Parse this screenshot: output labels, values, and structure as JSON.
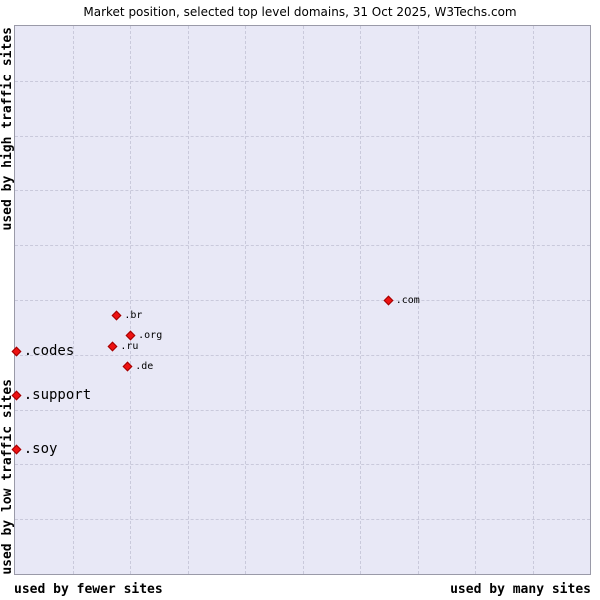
{
  "title": "Market position, selected top level domains, 31 Oct 2025, W3Techs.com",
  "axis_labels": {
    "y_top": "used by high traffic sites",
    "y_bottom": "used by low traffic sites",
    "x_left": "used by fewer sites",
    "x_right": "used by many sites"
  },
  "colors": {
    "plot_background": "#e8e8f6",
    "grid": "#c9c9db",
    "marker": "#ee1111",
    "text": "#000000"
  },
  "chart_data": {
    "type": "scatter",
    "title": "Market position, selected top level domains, 31 Oct 2025, W3Techs.com",
    "x_axis": {
      "label_left": "used by fewer sites",
      "label_right": "used by many sites",
      "range_pct": [
        0,
        100
      ]
    },
    "y_axis": {
      "label_top": "used by high traffic sites",
      "label_bottom": "used by low traffic sites",
      "range_pct": [
        0,
        100
      ]
    },
    "grid": true,
    "grid_divisions": 10,
    "note": "x = percent from left edge of plot, y = percent from top edge of plot",
    "points": [
      {
        "label": ".com",
        "x": 65.0,
        "y": 50.2,
        "emphasis": "small"
      },
      {
        "label": ".br",
        "x": 17.8,
        "y": 52.9,
        "emphasis": "small"
      },
      {
        "label": ".org",
        "x": 20.2,
        "y": 56.5,
        "emphasis": "small"
      },
      {
        "label": ".ru",
        "x": 17.1,
        "y": 58.5,
        "emphasis": "small"
      },
      {
        "label": ".de",
        "x": 19.7,
        "y": 62.2,
        "emphasis": "small"
      },
      {
        "label": ".codes",
        "x": 0.3,
        "y": 59.5,
        "emphasis": "large"
      },
      {
        "label": ".support",
        "x": 0.3,
        "y": 67.5,
        "emphasis": "large"
      },
      {
        "label": ".soy",
        "x": 0.3,
        "y": 77.3,
        "emphasis": "large"
      }
    ]
  }
}
